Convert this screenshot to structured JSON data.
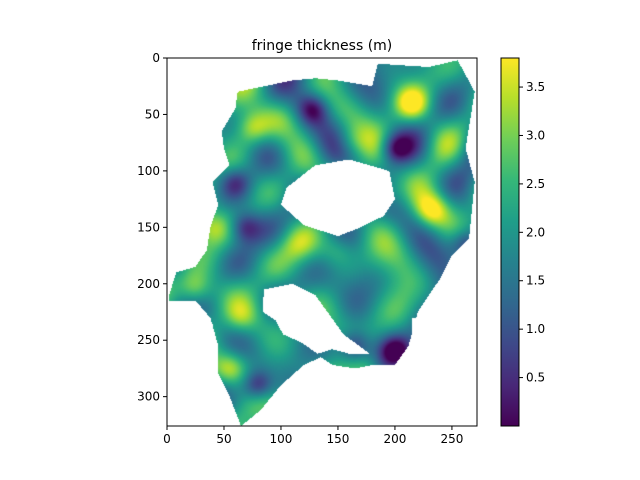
{
  "chart_data": {
    "type": "heatmap",
    "title": "fringe thickness (m)",
    "xlabel": "",
    "ylabel": "",
    "xlim": [
      0,
      272
    ],
    "ylim": [
      326,
      0
    ],
    "x_ticks": [
      0,
      50,
      100,
      150,
      200,
      250
    ],
    "y_ticks": [
      0,
      50,
      100,
      150,
      200,
      250,
      300
    ],
    "colormap": "viridis",
    "colorbar": {
      "range": [
        0.0,
        3.8
      ],
      "ticks": [
        0.5,
        1.0,
        1.5,
        2.0,
        2.5,
        3.0,
        3.5
      ],
      "tick_labels": [
        "0.5",
        "1.0",
        "1.5",
        "2.0",
        "2.5",
        "3.0",
        "3.5"
      ]
    },
    "grid": false,
    "masked_background_color": "#ffffff",
    "colormap_stops": [
      "#440154",
      "#482878",
      "#3e4989",
      "#31688e",
      "#26828e",
      "#1f9e89",
      "#35b779",
      "#6ece58",
      "#b5de2b",
      "#fde725"
    ],
    "valid_region": {
      "units": "data",
      "polygon": [
        [
          2,
          210
        ],
        [
          8,
          190
        ],
        [
          25,
          185
        ],
        [
          35,
          170
        ],
        [
          38,
          150
        ],
        [
          45,
          130
        ],
        [
          40,
          110
        ],
        [
          55,
          95
        ],
        [
          50,
          80
        ],
        [
          48,
          65
        ],
        [
          60,
          45
        ],
        [
          62,
          30
        ],
        [
          85,
          25
        ],
        [
          110,
          20
        ],
        [
          130,
          18
        ],
        [
          150,
          20
        ],
        [
          180,
          25
        ],
        [
          185,
          5
        ],
        [
          230,
          8
        ],
        [
          255,
          2
        ],
        [
          270,
          30
        ],
        [
          262,
          80
        ],
        [
          270,
          110
        ],
        [
          265,
          160
        ],
        [
          250,
          175
        ],
        [
          240,
          195
        ],
        [
          220,
          225
        ],
        [
          212,
          255
        ],
        [
          200,
          272
        ],
        [
          180,
          272
        ],
        [
          165,
          275
        ],
        [
          145,
          272
        ],
        [
          135,
          265
        ],
        [
          120,
          272
        ],
        [
          100,
          290
        ],
        [
          82,
          312
        ],
        [
          65,
          326
        ],
        [
          55,
          300
        ],
        [
          45,
          280
        ],
        [
          45,
          255
        ],
        [
          38,
          230
        ],
        [
          25,
          215
        ],
        [
          2,
          215
        ]
      ]
    },
    "holes": [
      {
        "units": "data",
        "polygon": [
          [
            85,
            205
          ],
          [
            110,
            200
          ],
          [
            130,
            210
          ],
          [
            155,
            245
          ],
          [
            178,
            262
          ],
          [
            160,
            262
          ],
          [
            145,
            258
          ],
          [
            132,
            262
          ],
          [
            118,
            252
          ],
          [
            102,
            245
          ],
          [
            95,
            232
          ],
          [
            84,
            225
          ]
        ]
      },
      {
        "units": "data",
        "polygon": [
          [
            105,
            115
          ],
          [
            130,
            95
          ],
          [
            160,
            90
          ],
          [
            195,
            100
          ],
          [
            200,
            125
          ],
          [
            190,
            140
          ],
          [
            170,
            150
          ],
          [
            150,
            158
          ],
          [
            120,
            148
          ],
          [
            100,
            130
          ]
        ]
      },
      {
        "units": "data",
        "polygon": [
          [
            215,
            230
          ],
          [
            235,
            230
          ],
          [
            240,
            250
          ],
          [
            228,
            262
          ],
          [
            215,
            255
          ]
        ]
      },
      {
        "units": "data",
        "polygon": [
          [
            60,
            5
          ],
          [
            180,
            5
          ],
          [
            180,
            18
          ],
          [
            150,
            18
          ],
          [
            130,
            15
          ],
          [
            110,
            18
          ],
          [
            85,
            22
          ],
          [
            62,
            28
          ]
        ]
      },
      {
        "units": "data",
        "polygon": [
          [
            0,
            0
          ],
          [
            58,
            0
          ],
          [
            55,
            45
          ],
          [
            42,
            65
          ],
          [
            45,
            95
          ],
          [
            32,
            110
          ],
          [
            38,
            130
          ],
          [
            30,
            150
          ],
          [
            28,
            170
          ],
          [
            15,
            182
          ],
          [
            0,
            185
          ]
        ]
      },
      {
        "units": "data",
        "polygon": [
          [
            0,
            235
          ],
          [
            40,
            235
          ],
          [
            42,
            280
          ],
          [
            55,
            326
          ],
          [
            0,
            326
          ]
        ]
      }
    ],
    "hotspots": [
      {
        "x": 25,
        "y": 205,
        "value": 3.5
      },
      {
        "x": 55,
        "y": 275,
        "value": 3.6
      },
      {
        "x": 75,
        "y": 62,
        "value": 3.4
      },
      {
        "x": 160,
        "y": 75,
        "value": 3.0
      },
      {
        "x": 215,
        "y": 40,
        "value": 3.7
      },
      {
        "x": 232,
        "y": 135,
        "value": 3.6
      },
      {
        "x": 190,
        "y": 120,
        "value": 3.2
      },
      {
        "x": 150,
        "y": 170,
        "value": 2.8
      },
      {
        "x": 175,
        "y": 280,
        "value": 3.1
      },
      {
        "x": 40,
        "y": 150,
        "value": 3.0
      },
      {
        "x": 115,
        "y": 165,
        "value": 2.6
      },
      {
        "x": 65,
        "y": 230,
        "value": 3.0
      },
      {
        "x": 100,
        "y": 55,
        "value": 2.2
      }
    ],
    "coldspots": [
      {
        "x": 80,
        "y": 290,
        "value": 0.1
      },
      {
        "x": 200,
        "y": 80,
        "value": 0.2
      },
      {
        "x": 68,
        "y": 150,
        "value": 0.4
      },
      {
        "x": 200,
        "y": 260,
        "value": 0.2
      },
      {
        "x": 165,
        "y": 255,
        "value": 0.5
      },
      {
        "x": 128,
        "y": 45,
        "value": 0.4
      },
      {
        "x": 262,
        "y": 165,
        "value": 0.3
      },
      {
        "x": 60,
        "y": 110,
        "value": 0.8
      }
    ]
  }
}
